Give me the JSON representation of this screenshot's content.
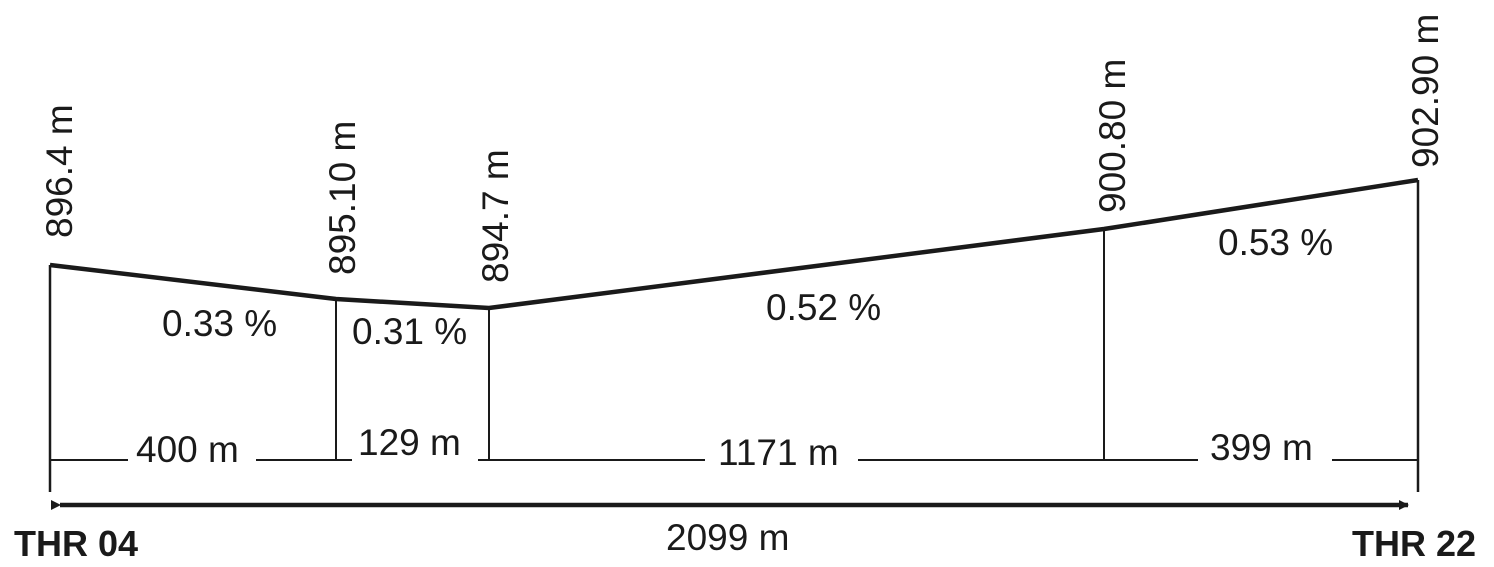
{
  "diagram": {
    "elevations": [
      "896.4 m",
      "895.10 m",
      "894.7 m",
      "900.80 m",
      "902.90 m"
    ],
    "slopes": [
      "0.33 %",
      "0.31 %",
      "0.52 %",
      "0.53 %"
    ],
    "distances": [
      "400 m",
      "129 m",
      "1171 m",
      "399 m"
    ],
    "total_length": "2099 m",
    "threshold_left": "THR 04",
    "threshold_right": "THR 22"
  }
}
